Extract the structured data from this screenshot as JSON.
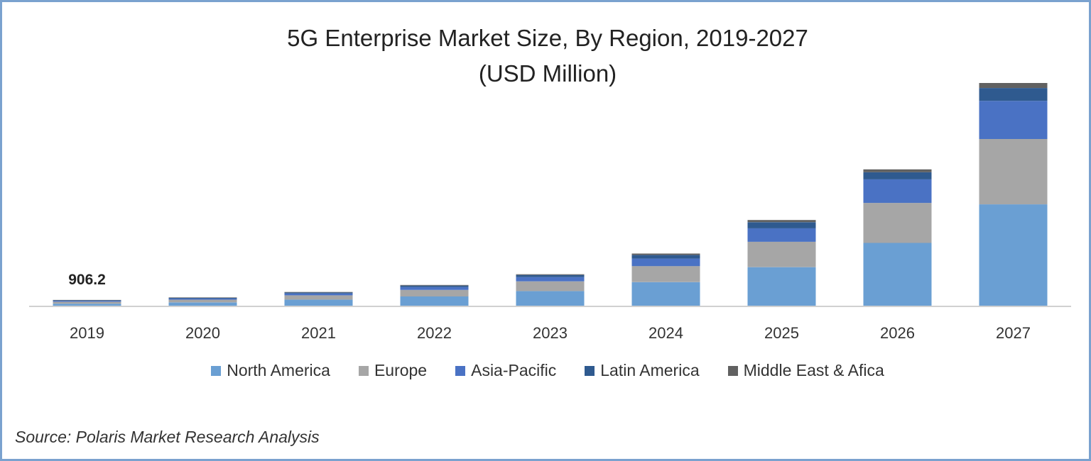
{
  "chart_data": {
    "type": "bar",
    "stacked": true,
    "title": "5G Enterprise Market Size, By Region, 2019-2027",
    "subtitle": "(USD Million)",
    "categories": [
      "2019",
      "2020",
      "2021",
      "2022",
      "2023",
      "2024",
      "2025",
      "2026",
      "2027"
    ],
    "series": [
      {
        "name": "North America",
        "color": "#6a9fd3",
        "values": [
          380,
          560,
          950,
          1400,
          2150,
          3400,
          5500,
          8900,
          14300
        ]
      },
      {
        "name": "Europe",
        "color": "#a6a6a6",
        "values": [
          270,
          380,
          600,
          900,
          1350,
          2250,
          3550,
          5600,
          9150
        ]
      },
      {
        "name": "Asia-Pacific",
        "color": "#4a72c4",
        "values": [
          140,
          170,
          270,
          400,
          600,
          1050,
          1900,
          3300,
          5350
        ]
      },
      {
        "name": "Latin America",
        "color": "#2f5a8f",
        "values": [
          70,
          85,
          130,
          210,
          300,
          500,
          850,
          1000,
          1800
        ]
      },
      {
        "name": "Middle East & Afica",
        "color": "#616161",
        "values": [
          46,
          55,
          70,
          90,
          100,
          200,
          300,
          400,
          700
        ]
      }
    ],
    "data_labels": [
      {
        "category": "2019",
        "text": "906.2"
      }
    ],
    "ylim": [
      0,
      32000
    ],
    "grid": false,
    "legend": "bottom",
    "source": "Source: Polaris Market Research Analysis"
  }
}
